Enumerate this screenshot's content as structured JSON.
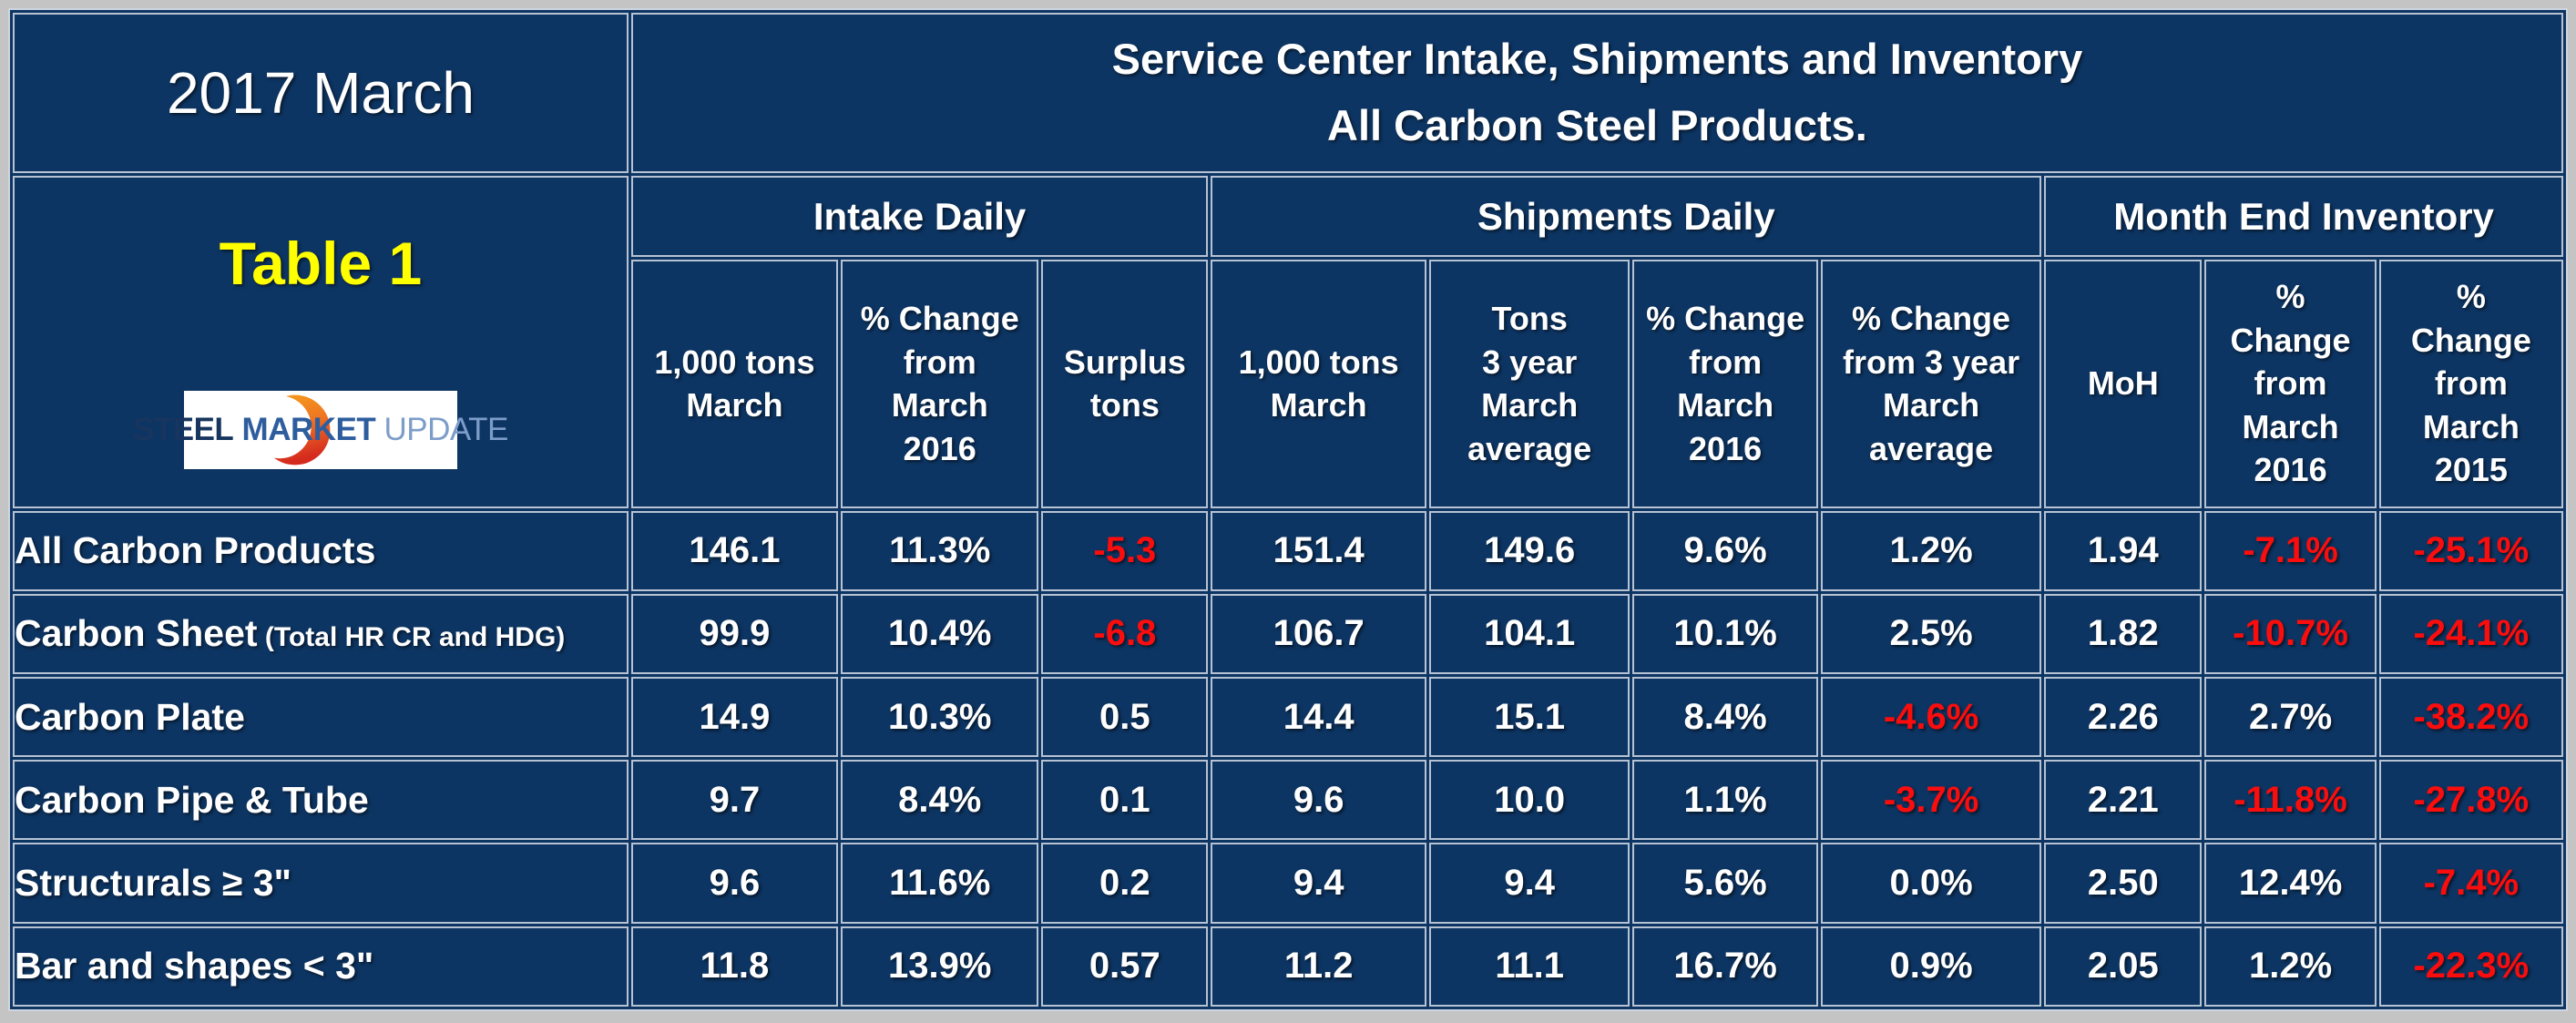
{
  "colors": {
    "page_background": "#c4c4c4",
    "table_background": "#0d3563",
    "grid_line": "#b7c2d2",
    "text_white": "#ffffff",
    "accent_yellow": "#ffff00",
    "negative_red": "#fb0d0d",
    "logo_steel_blue": "#17355e",
    "logo_market_blue": "#2e5d9e",
    "logo_update_blue": "#7d9dc9",
    "logo_crescent_orange": "#f59a1d",
    "logo_crescent_red": "#d52a1e"
  },
  "header": {
    "period": "2017 March",
    "table_label": "Table 1",
    "title_line1": "Service Center Intake, Shipments and Inventory",
    "title_line2": "All Carbon Steel Products."
  },
  "logo": {
    "steel": "STEEL",
    "market": "MARKET",
    "update": "UPDATE",
    "crescent_icon": "orange-crescent"
  },
  "groups": [
    {
      "label": "Intake Daily",
      "colspan": 3
    },
    {
      "label": "Shipments Daily",
      "colspan": 4
    },
    {
      "label": "Month End Inventory",
      "colspan": 3
    }
  ],
  "columns": [
    "1,000 tons\nMarch",
    "% Change\nfrom\nMarch\n2016",
    "Surplus\ntons",
    "1,000 tons\nMarch",
    "Tons\n3 year\nMarch\naverage",
    "% Change\nfrom\nMarch\n2016",
    "% Change\nfrom 3 year\nMarch\naverage",
    "MoH",
    "%\nChange\nfrom\nMarch\n2016",
    "%\nChange\nfrom\nMarch\n2015"
  ],
  "rows": [
    {
      "label": "All Carbon Products",
      "note": "",
      "values": [
        "146.1",
        "11.3%",
        "-5.3",
        "151.4",
        "149.6",
        "9.6%",
        "1.2%",
        "1.94",
        "-7.1%",
        "-25.1%"
      ]
    },
    {
      "label": "Carbon Sheet",
      "note": "(Total HR CR and HDG)",
      "values": [
        "99.9",
        "10.4%",
        "-6.8",
        "106.7",
        "104.1",
        "10.1%",
        "2.5%",
        "1.82",
        "-10.7%",
        "-24.1%"
      ]
    },
    {
      "label": "Carbon Plate",
      "note": "",
      "values": [
        "14.9",
        "10.3%",
        "0.5",
        "14.4",
        "15.1",
        "8.4%",
        "-4.6%",
        "2.26",
        "2.7%",
        "-38.2%"
      ]
    },
    {
      "label": "Carbon Pipe & Tube",
      "note": "",
      "values": [
        "9.7",
        "8.4%",
        "0.1",
        "9.6",
        "10.0",
        "1.1%",
        "-3.7%",
        "2.21",
        "-11.8%",
        "-27.8%"
      ]
    },
    {
      "label": "Structurals ≥ 3\"",
      "note": "",
      "values": [
        "9.6",
        "11.6%",
        "0.2",
        "9.4",
        "9.4",
        "5.6%",
        "0.0%",
        "2.50",
        "12.4%",
        "-7.4%"
      ]
    },
    {
      "label": "Bar and shapes < 3\"",
      "note": "",
      "values": [
        "11.8",
        "13.9%",
        "0.57",
        "11.2",
        "11.1",
        "16.7%",
        "0.9%",
        "2.05",
        "1.2%",
        "-22.3%"
      ]
    }
  ],
  "chart_data": {
    "type": "table",
    "title": "Service Center Intake, Shipments and Inventory — All Carbon Steel Products. (2017 March, Table 1)",
    "column_groups": [
      {
        "group": "Intake Daily",
        "columns": [
          "1,000 tons March",
          "% Change from March 2016",
          "Surplus tons"
        ]
      },
      {
        "group": "Shipments Daily",
        "columns": [
          "1,000 tons March",
          "Tons 3 year March average",
          "% Change from March 2016",
          "% Change from 3 year March average"
        ]
      },
      {
        "group": "Month End Inventory",
        "columns": [
          "MoH",
          "% Change from March 2016",
          "% Change from March 2015"
        ]
      }
    ],
    "row_header": "Product",
    "rows": [
      {
        "product": "All Carbon Products",
        "intake_1000_tons_march": 146.1,
        "intake_pct_change_from_march_2016": "11.3%",
        "surplus_tons": -5.3,
        "shipments_1000_tons_march": 151.4,
        "shipments_tons_3yr_march_avg": 149.6,
        "shipments_pct_change_from_march_2016": "9.6%",
        "shipments_pct_change_from_3yr_march_avg": "1.2%",
        "moh": 1.94,
        "inv_pct_change_from_march_2016": "-7.1%",
        "inv_pct_change_from_march_2015": "-25.1%"
      },
      {
        "product": "Carbon Sheet (Total HR CR and HDG)",
        "intake_1000_tons_march": 99.9,
        "intake_pct_change_from_march_2016": "10.4%",
        "surplus_tons": -6.8,
        "shipments_1000_tons_march": 106.7,
        "shipments_tons_3yr_march_avg": 104.1,
        "shipments_pct_change_from_march_2016": "10.1%",
        "shipments_pct_change_from_3yr_march_avg": "2.5%",
        "moh": 1.82,
        "inv_pct_change_from_march_2016": "-10.7%",
        "inv_pct_change_from_march_2015": "-24.1%"
      },
      {
        "product": "Carbon Plate",
        "intake_1000_tons_march": 14.9,
        "intake_pct_change_from_march_2016": "10.3%",
        "surplus_tons": 0.5,
        "shipments_1000_tons_march": 14.4,
        "shipments_tons_3yr_march_avg": 15.1,
        "shipments_pct_change_from_march_2016": "8.4%",
        "shipments_pct_change_from_3yr_march_avg": "-4.6%",
        "moh": 2.26,
        "inv_pct_change_from_march_2016": "2.7%",
        "inv_pct_change_from_march_2015": "-38.2%"
      },
      {
        "product": "Carbon Pipe & Tube",
        "intake_1000_tons_march": 9.7,
        "intake_pct_change_from_march_2016": "8.4%",
        "surplus_tons": 0.1,
        "shipments_1000_tons_march": 9.6,
        "shipments_tons_3yr_march_avg": 10.0,
        "shipments_pct_change_from_march_2016": "1.1%",
        "shipments_pct_change_from_3yr_march_avg": "-3.7%",
        "moh": 2.21,
        "inv_pct_change_from_march_2016": "-11.8%",
        "inv_pct_change_from_march_2015": "-27.8%"
      },
      {
        "product": "Structurals ≥ 3\"",
        "intake_1000_tons_march": 9.6,
        "intake_pct_change_from_march_2016": "11.6%",
        "surplus_tons": 0.2,
        "shipments_1000_tons_march": 9.4,
        "shipments_tons_3yr_march_avg": 9.4,
        "shipments_pct_change_from_march_2016": "5.6%",
        "shipments_pct_change_from_3yr_march_avg": "0.0%",
        "moh": 2.5,
        "inv_pct_change_from_march_2016": "12.4%",
        "inv_pct_change_from_march_2015": "-7.4%"
      },
      {
        "product": "Bar and shapes < 3\"",
        "intake_1000_tons_march": 11.8,
        "intake_pct_change_from_march_2016": "13.9%",
        "surplus_tons": 0.57,
        "shipments_1000_tons_march": 11.2,
        "shipments_tons_3yr_march_avg": 11.1,
        "shipments_pct_change_from_march_2016": "16.7%",
        "shipments_pct_change_from_3yr_march_avg": "0.9%",
        "moh": 2.05,
        "inv_pct_change_from_march_2016": "1.2%",
        "inv_pct_change_from_march_2015": "-22.3%"
      }
    ],
    "notes": "Negative values are rendered in red; all other values in white on a dark navy table."
  }
}
